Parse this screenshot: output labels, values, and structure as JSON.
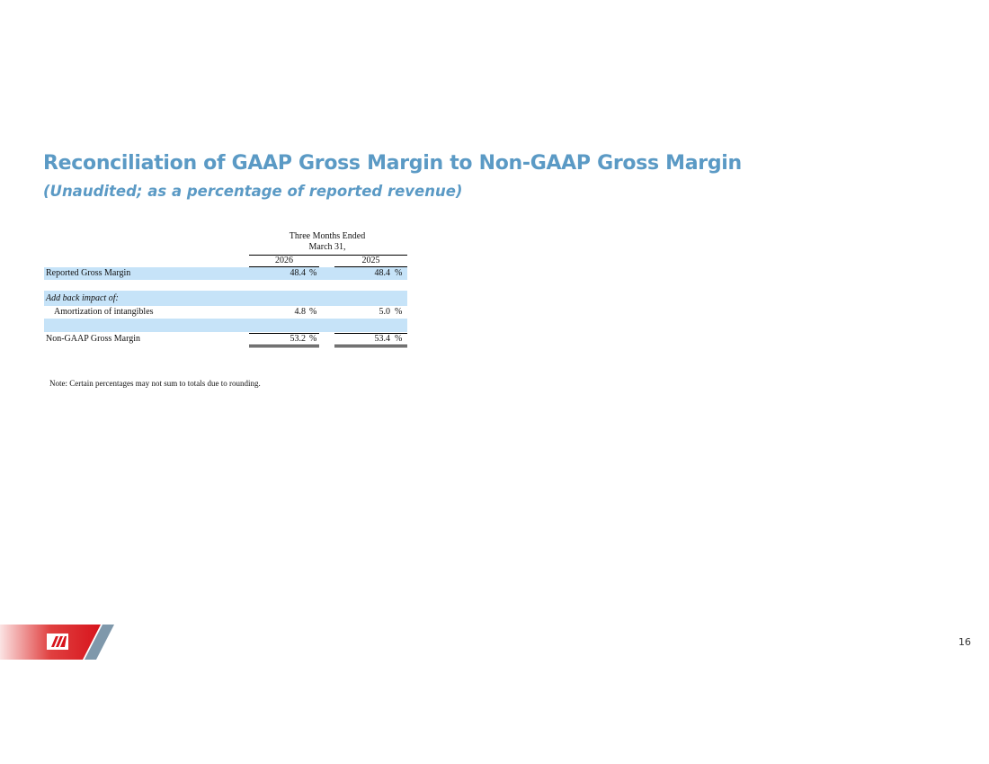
{
  "header": {
    "title": "Reconciliation of GAAP Gross Margin to Non-GAAP Gross Margin",
    "subtitle": "(Unaudited; as a percentage of reported revenue)"
  },
  "table": {
    "period": [
      "Three Months Ended",
      "March 31,"
    ],
    "columns": [
      "2026",
      "2025"
    ],
    "rows": [
      {
        "label": "Reported Gross Margin",
        "values": [
          "48.4",
          "48.4"
        ],
        "unit": "%"
      },
      {
        "label": "Add back impact of:"
      },
      {
        "label": "Amortization of intangibles",
        "values": [
          "4.8",
          "5.0"
        ],
        "unit": "%"
      },
      {
        "label": "Non-GAAP Gross Margin",
        "values": [
          "53.2",
          "53.4"
        ],
        "unit": "%"
      }
    ]
  },
  "note": "Note: Certain percentages may not sum to totals due to rounding.",
  "page_number": "16"
}
